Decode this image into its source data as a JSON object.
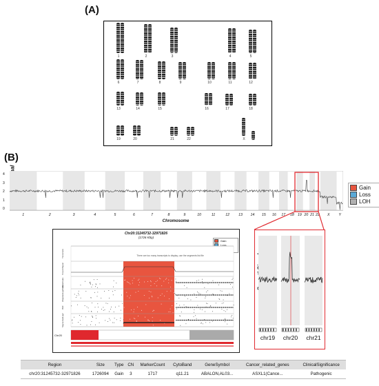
{
  "panel_a_label": "(A)",
  "panel_b_label": "(B)",
  "karyotype": {
    "rows": [
      [
        "1",
        "2",
        "3",
        "4",
        "5"
      ],
      [
        "6",
        "7",
        "8",
        "9",
        "10",
        "11",
        "12"
      ],
      [
        "13",
        "14",
        "15",
        "16",
        "17",
        "18"
      ],
      [
        "19",
        "20",
        "21",
        "22",
        "X",
        "Y"
      ]
    ]
  },
  "genome_plot": {
    "ylabel": "SmoothSignal",
    "xlabel": "Chromosome",
    "yticks": [
      "0",
      "1",
      "2",
      "3",
      "4"
    ],
    "chromosomes": [
      "1",
      "2",
      "3",
      "4",
      "5",
      "6",
      "7",
      "8",
      "9",
      "10",
      "11",
      "12",
      "13",
      "14",
      "15",
      "16",
      "17",
      "18",
      "19",
      "20",
      "21",
      "22",
      "X",
      "Y"
    ],
    "trace_color": "#444444",
    "highlight_color": "#e0282e"
  },
  "legend": [
    {
      "label": "Gain",
      "color": "#e8553f"
    },
    {
      "label": "Loss",
      "color": "#5aa9d6"
    },
    {
      "label": "LOH",
      "color": "#b0b0b0"
    }
  ],
  "detail_panel": {
    "title": "Chr20:31245732-32971826",
    "subtitle": "(1726 Kbp)",
    "note": "There are too many transcripts to display, use the segments list file",
    "legend": [
      {
        "label": "Gain",
        "color": "#e8553f"
      },
      {
        "label": "Loss",
        "color": "#5aa9d6"
      },
      {
        "label": "LOH",
        "color": "#b0b0b0"
      }
    ],
    "track_labels": [
      "Transcripts",
      "SmoothSignal",
      "AllelePeaks",
      "WeightedLog2Ratio",
      "BAF",
      "SegmentedLog2"
    ],
    "ideogram_label": "Chr20"
  },
  "zoom_panel": {
    "ylabel": "SmoothSignal",
    "labels": [
      "chr19",
      "chr20",
      "chr21"
    ]
  },
  "table": {
    "headers": [
      "Region",
      "Size",
      "Type",
      "CN",
      "MarkerCount",
      "CytoBand",
      "GeneSymbol",
      "Cancer_related_genes",
      "ClinicalSignificance"
    ],
    "rows": [
      [
        "chr20:31245732-32971826",
        "1726094",
        "Gain",
        "3",
        "1717",
        "q11.21",
        "ABALON,AL03...",
        "ASXL1(Cance...",
        "Pathogenic"
      ]
    ]
  }
}
